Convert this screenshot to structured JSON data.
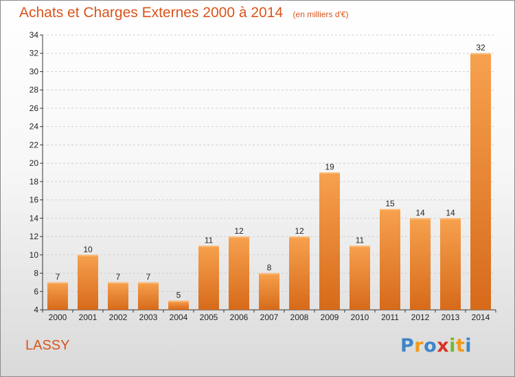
{
  "header": {
    "title": "Achats et Charges Externes 2000 à 2014",
    "unit": "(en milliers d'€)"
  },
  "footer": {
    "place": "LASSY",
    "logo": "Proxiti"
  },
  "colors": {
    "title": "#d9541a",
    "bar_light": "#f7a14e",
    "bar_dark": "#d66a1a",
    "grid": "#cfcfcf"
  },
  "chart_data": {
    "type": "bar",
    "title": "Achats et Charges Externes 2000 à 2014",
    "subtitle": "(en milliers d'€)",
    "categories": [
      "2000",
      "2001",
      "2002",
      "2003",
      "2004",
      "2005",
      "2006",
      "2007",
      "2008",
      "2009",
      "2010",
      "2011",
      "2012",
      "2013",
      "2014"
    ],
    "values": [
      7,
      10,
      7,
      7,
      5,
      11,
      12,
      8,
      12,
      19,
      11,
      15,
      14,
      14,
      32
    ],
    "ylim": [
      4,
      34
    ],
    "yticks": [
      4,
      6,
      8,
      10,
      12,
      14,
      16,
      18,
      20,
      22,
      24,
      26,
      28,
      30,
      32,
      34
    ],
    "grid": true,
    "data_labels": true
  }
}
